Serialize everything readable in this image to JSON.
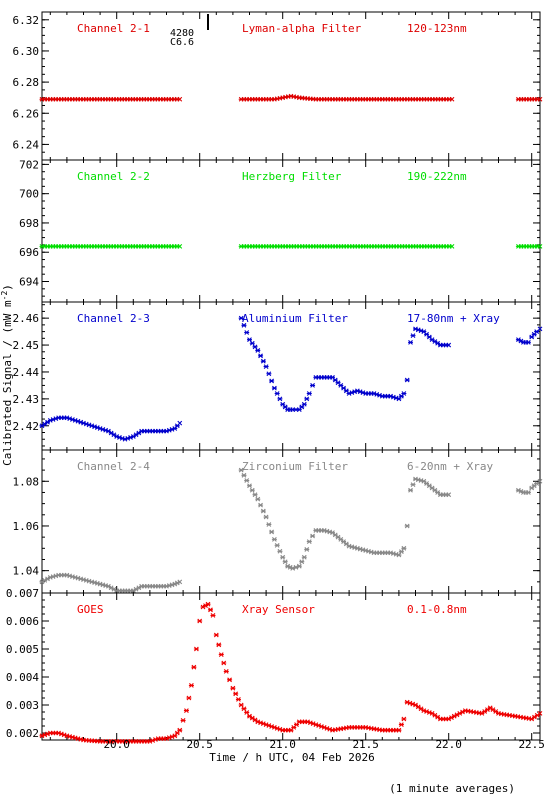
{
  "chart_data": {
    "type": "scatter",
    "xlabel": "Time / h UTC, 04 Feb 2026",
    "ylabel": "Calibrated Signal / (mW m",
    "ylabel_sup": "-2",
    "ylabel_end": ")",
    "footnote": "(1 minute averages)",
    "xlim": [
      19.55,
      22.55
    ],
    "xticks": [
      "20.0",
      "20.5",
      "21.0",
      "21.5",
      "22.0",
      "22.5"
    ],
    "xtick_values": [
      20.0,
      20.5,
      21.0,
      21.5,
      22.0,
      22.5
    ],
    "event_marker": {
      "x": 20.55,
      "label_top": "4280",
      "label_bottom": "C6.6"
    },
    "panels": [
      {
        "channel": "Channel 2-1",
        "filter": "Lyman-alpha Filter",
        "band": "120-123nm",
        "color": "#dd0000",
        "ylim": [
          6.23,
          6.325
        ],
        "yticks": [
          "6.24",
          "6.26",
          "6.28",
          "6.30",
          "6.32"
        ],
        "ytick_values": [
          6.24,
          6.26,
          6.28,
          6.3,
          6.32
        ],
        "series": [
          {
            "x": [
              19.55,
              20.38
            ],
            "y": [
              6.269,
              6.269
            ]
          },
          {
            "x": [
              20.75,
              20.95,
              21.0,
              21.05,
              21.1,
              21.2,
              21.4,
              21.7,
              22.02
            ],
            "y": [
              6.269,
              6.269,
              6.27,
              6.271,
              6.27,
              6.269,
              6.269,
              6.269,
              6.269
            ]
          },
          {
            "x": [
              22.42,
              22.55
            ],
            "y": [
              6.269,
              6.269
            ]
          }
        ]
      },
      {
        "channel": "Channel 2-2",
        "filter": "Herzberg Filter",
        "band": "190-222nm",
        "color": "#00dd00",
        "ylim": [
          692.6,
          702.3
        ],
        "yticks": [
          "694",
          "696",
          "698",
          "700",
          "702"
        ],
        "ytick_values": [
          694,
          696,
          698,
          700,
          702
        ],
        "series": [
          {
            "x": [
              19.55,
              20.38
            ],
            "y": [
              696.4,
              696.4
            ]
          },
          {
            "x": [
              20.75,
              22.02
            ],
            "y": [
              696.4,
              696.4
            ]
          },
          {
            "x": [
              22.42,
              22.55
            ],
            "y": [
              696.4,
              696.4
            ]
          }
        ]
      },
      {
        "channel": "Channel 2-3",
        "filter": "Aluminium Filter",
        "band": "17-80nm + Xray",
        "color": "#0000cc",
        "ylim": [
          2.411,
          2.466
        ],
        "yticks": [
          "2.42",
          "2.43",
          "2.44",
          "2.45",
          "2.46"
        ],
        "ytick_values": [
          2.42,
          2.43,
          2.44,
          2.45,
          2.46
        ],
        "series": [
          {
            "x": [
              19.55,
              19.6,
              19.65,
              19.7,
              19.75,
              19.8,
              19.85,
              19.9,
              19.95,
              20.0,
              20.05,
              20.1,
              20.15,
              20.2,
              20.25,
              20.3,
              20.35,
              20.38
            ],
            "y": [
              2.42,
              2.422,
              2.423,
              2.423,
              2.422,
              2.421,
              2.42,
              2.419,
              2.418,
              2.416,
              2.415,
              2.416,
              2.418,
              2.418,
              2.418,
              2.418,
              2.419,
              2.421
            ]
          },
          {
            "x": [
              20.75,
              20.8,
              20.85,
              20.9,
              20.95,
              21.0,
              21.03,
              21.06,
              21.1,
              21.13,
              21.16,
              21.2,
              21.25,
              21.3,
              21.35,
              21.4,
              21.45,
              21.5,
              21.55,
              21.6,
              21.65,
              21.7,
              21.73,
              21.75,
              21.77,
              21.8,
              21.85,
              21.9,
              21.95,
              22.0
            ],
            "y": [
              2.46,
              2.452,
              2.448,
              2.442,
              2.434,
              2.428,
              2.426,
              2.426,
              2.426,
              2.428,
              2.432,
              2.438,
              2.438,
              2.438,
              2.435,
              2.432,
              2.433,
              2.432,
              2.432,
              2.431,
              2.431,
              2.43,
              2.432,
              2.437,
              2.451,
              2.456,
              2.455,
              2.452,
              2.45,
              2.45
            ]
          },
          {
            "x": [
              22.42,
              22.45,
              22.48,
              22.5,
              22.53,
              22.55
            ],
            "y": [
              2.452,
              2.451,
              2.451,
              2.453,
              2.455,
              2.456
            ]
          }
        ]
      },
      {
        "channel": "Channel 2-4",
        "filter": "Zirconium Filter",
        "band": "6-20nm + Xray",
        "color": "#888888",
        "ylim": [
          1.03,
          1.094
        ],
        "yticks": [
          "1.04",
          "1.06",
          "1.08"
        ],
        "ytick_values": [
          1.04,
          1.06,
          1.08
        ],
        "series": [
          {
            "x": [
              19.55,
              19.6,
              19.65,
              19.7,
              19.75,
              19.8,
              19.85,
              19.9,
              19.95,
              20.0,
              20.05,
              20.1,
              20.15,
              20.2,
              20.25,
              20.3,
              20.35,
              20.38
            ],
            "y": [
              1.035,
              1.037,
              1.038,
              1.038,
              1.037,
              1.036,
              1.035,
              1.034,
              1.033,
              1.031,
              1.031,
              1.031,
              1.033,
              1.033,
              1.033,
              1.033,
              1.034,
              1.035
            ]
          },
          {
            "x": [
              20.75,
              20.8,
              20.85,
              20.9,
              20.95,
              21.0,
              21.03,
              21.06,
              21.1,
              21.13,
              21.16,
              21.2,
              21.25,
              21.3,
              21.35,
              21.4,
              21.45,
              21.5,
              21.55,
              21.6,
              21.65,
              21.7,
              21.73,
              21.75,
              21.77,
              21.8,
              21.85,
              21.9,
              21.95,
              22.0
            ],
            "y": [
              1.085,
              1.078,
              1.072,
              1.064,
              1.054,
              1.046,
              1.042,
              1.041,
              1.042,
              1.046,
              1.053,
              1.058,
              1.058,
              1.057,
              1.054,
              1.051,
              1.05,
              1.049,
              1.048,
              1.048,
              1.048,
              1.047,
              1.05,
              1.06,
              1.076,
              1.081,
              1.08,
              1.077,
              1.074,
              1.074
            ]
          },
          {
            "x": [
              22.42,
              22.45,
              22.48,
              22.5,
              22.53,
              22.55
            ],
            "y": [
              1.076,
              1.075,
              1.075,
              1.077,
              1.079,
              1.08
            ]
          }
        ]
      },
      {
        "channel": "GOES",
        "filter": "Xray Sensor",
        "band": "0.1-0.8nm",
        "color": "#ee0000",
        "ylim": [
          0.00175,
          0.007
        ],
        "yticks": [
          "0.002",
          "0.003",
          "0.004",
          "0.005",
          "0.006",
          "0.007"
        ],
        "ytick_values": [
          0.002,
          0.003,
          0.004,
          0.005,
          0.006,
          0.007
        ],
        "series": [
          {
            "x": [
              19.55,
              19.6,
              19.65,
              19.7,
              19.8,
              19.9,
              20.0,
              20.1,
              20.2,
              20.25,
              20.3,
              20.35,
              20.38,
              20.42,
              20.45,
              20.48,
              20.5,
              20.52,
              20.55,
              20.58,
              20.6,
              20.63,
              20.66,
              20.7,
              20.75,
              20.8,
              20.85,
              20.9,
              21.0,
              21.05,
              21.1,
              21.15,
              21.2,
              21.25,
              21.3,
              21.4,
              21.5,
              21.6,
              21.7,
              21.73,
              21.75,
              21.8,
              21.85,
              21.9,
              21.95,
              22.0,
              22.1,
              22.2,
              22.25,
              22.3,
              22.4,
              22.5,
              22.55
            ],
            "y": [
              0.0019,
              0.002,
              0.002,
              0.0019,
              0.00175,
              0.0017,
              0.0017,
              0.0017,
              0.0017,
              0.0018,
              0.0018,
              0.0019,
              0.0021,
              0.0028,
              0.0037,
              0.005,
              0.006,
              0.0065,
              0.0066,
              0.0062,
              0.0055,
              0.0048,
              0.0042,
              0.0036,
              0.003,
              0.0026,
              0.0024,
              0.0023,
              0.0021,
              0.0021,
              0.0024,
              0.0024,
              0.0023,
              0.0022,
              0.0021,
              0.0022,
              0.0022,
              0.0021,
              0.0021,
              0.0025,
              0.0031,
              0.003,
              0.0028,
              0.0027,
              0.0025,
              0.0025,
              0.0028,
              0.0027,
              0.0029,
              0.0027,
              0.0026,
              0.0025,
              0.0027
            ]
          }
        ]
      }
    ]
  }
}
